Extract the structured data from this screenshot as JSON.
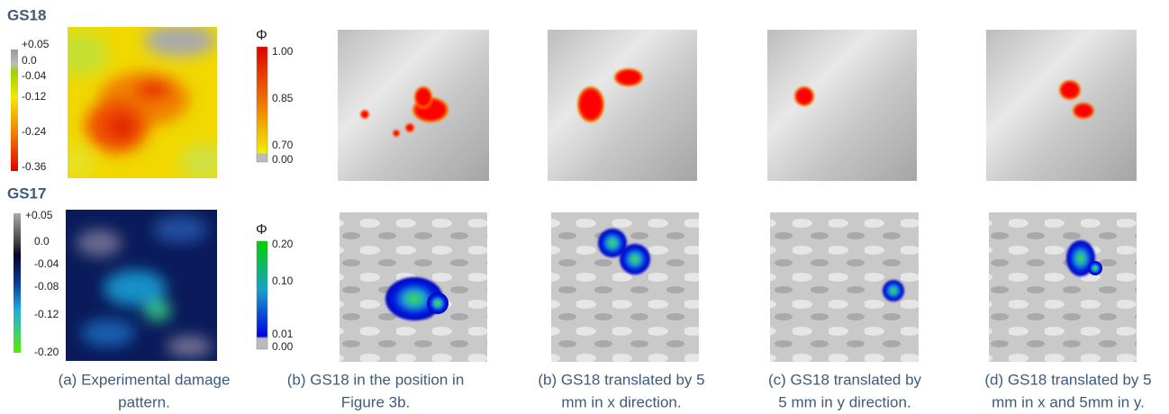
{
  "rows": [
    {
      "label": "GS18",
      "damage_scale": [
        "+0.05",
        "0.0",
        "-0.04",
        "-0.12",
        "-0.24",
        "-0.36"
      ],
      "phi_symbol": "Φ",
      "phi_scale": [
        "1.00",
        "0.85",
        "0.70",
        "0.00"
      ]
    },
    {
      "label": "GS17",
      "damage_scale": [
        "+0.05",
        "0.0",
        "-0.04",
        "-0.08",
        "-0.12",
        "-0.20"
      ],
      "phi_symbol": "Φ",
      "phi_scale": [
        "0.20",
        "0.10",
        "0.01",
        "0.00"
      ]
    }
  ],
  "captions": [
    [
      "(a) Experimental damage",
      "pattern."
    ],
    [
      "(b) GS18 in the position in",
      "Figure 3b."
    ],
    [
      "(b) GS18 translated by 5",
      "mm in x direction."
    ],
    [
      "(c) GS18 translated by",
      "5 mm in y direction."
    ],
    [
      "(d) GS18 translated by 5",
      "mm in x and 5mm in y."
    ]
  ]
}
